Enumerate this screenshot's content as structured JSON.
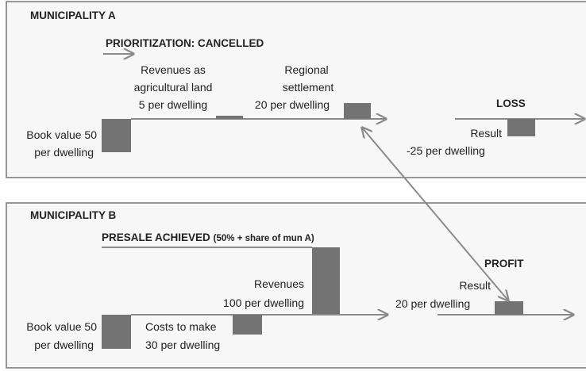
{
  "municipality_a": {
    "title": "MUNICIPALITY A",
    "status": "PRIORITIZATION: CANCELLED",
    "book_value": [
      "Book value 50",
      "per dwelling"
    ],
    "revenues": [
      "Revenues as",
      "agricultural land",
      "5 per dwelling"
    ],
    "settlement": [
      "Regional",
      "settlement",
      "20 per dwelling"
    ],
    "outcome": "LOSS",
    "result": [
      "Result",
      "-25 per dwelling"
    ]
  },
  "municipality_b": {
    "title": "MUNICIPALITY B",
    "status": "PRESALE ACHIEVED",
    "status_note": "(50% + share of mun A)",
    "book_value": [
      "Book value 50",
      "per dwelling"
    ],
    "costs": [
      "Costs to make",
      "30 per dwelling"
    ],
    "revenues": [
      "Revenues",
      "100 per dwelling"
    ],
    "outcome": "PROFIT",
    "result": [
      "Result",
      "20 per dwelling"
    ]
  }
}
